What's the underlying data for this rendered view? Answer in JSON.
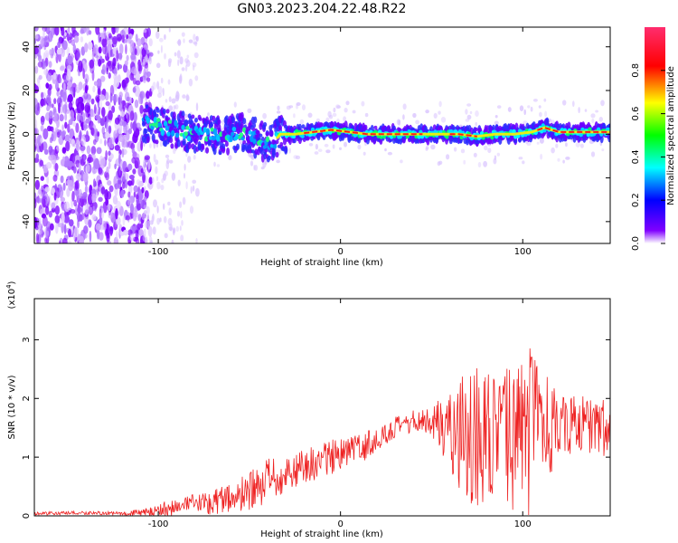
{
  "title": "GN03.2023.204.22.48.R22",
  "chart_data": [
    {
      "type": "heatmap",
      "xlabel": "Height of straight line (km)",
      "ylabel": "Frequency (Hz)",
      "xlim": [
        -168,
        148
      ],
      "ylim": [
        -50,
        49
      ],
      "xticks": [
        "-100",
        "0",
        "100"
      ],
      "xtick_values": [
        -100,
        0,
        100
      ],
      "yticks": [
        "-40",
        "-20",
        "0",
        "20",
        "40"
      ],
      "ytick_values": [
        -40,
        -20,
        0,
        20,
        40
      ],
      "colorbar": {
        "label": "Normalized spectral amplitude",
        "range": [
          0,
          1
        ],
        "ticks": [
          "0.0",
          "0.2",
          "0.4",
          "0.6",
          "0.8"
        ],
        "tick_values": [
          0.0,
          0.2,
          0.4,
          0.6,
          0.8
        ],
        "colors": [
          "#ffffff",
          "#8000ff",
          "#0000ff",
          "#00ffff",
          "#00ff00",
          "#ffff00",
          "#ff0000",
          "#ff2d6e"
        ]
      },
      "ridge": {
        "x": [
          -108,
          -95,
          -85,
          -75,
          -65,
          -55,
          -45,
          -38,
          -33,
          -25,
          -15,
          -5,
          5,
          15,
          25,
          35,
          45,
          55,
          65,
          75,
          85,
          95,
          105,
          112,
          120,
          130,
          140,
          148
        ],
        "y": [
          5,
          3,
          1,
          0,
          -1,
          1,
          -2,
          -5,
          0,
          0,
          1,
          2,
          1,
          0,
          0,
          0,
          0,
          0,
          0,
          -1,
          0,
          0,
          1,
          3,
          1,
          1,
          1,
          1
        ]
      }
    },
    {
      "type": "line",
      "xlabel": "Height of straight line (km)",
      "ylabel": "SNR (10 * v/v)",
      "yscale_label": "(x10",
      "yscale_exp": "4",
      "yscale_close": ")",
      "xlim": [
        -168,
        148
      ],
      "ylim": [
        0,
        3.7
      ],
      "xticks": [
        "-100",
        "0",
        "100"
      ],
      "xtick_values": [
        -100,
        0,
        100
      ],
      "yticks": [
        "0",
        "1",
        "2",
        "3"
      ],
      "ytick_values": [
        0,
        1,
        2,
        3
      ],
      "color": "#ee2222",
      "series": [
        {
          "x": [
            -168,
            -140,
            -120,
            -105,
            -95,
            -85,
            -75,
            -65,
            -55,
            -45,
            -40,
            -35,
            -30,
            -25,
            -20,
            -15,
            -10,
            -5,
            0,
            5,
            10,
            15,
            20,
            25,
            30,
            35,
            40,
            45,
            50,
            55,
            60,
            65,
            70,
            75,
            80,
            85,
            90,
            95,
            100,
            105,
            110,
            115,
            120,
            125,
            130,
            135,
            140,
            148
          ],
          "y": [
            0.04,
            0.05,
            0.04,
            0.06,
            0.12,
            0.18,
            0.22,
            0.28,
            0.35,
            0.45,
            0.55,
            0.62,
            0.7,
            0.78,
            0.85,
            0.9,
            0.95,
            1.0,
            1.05,
            1.1,
            1.15,
            1.22,
            1.3,
            1.4,
            1.48,
            1.55,
            1.6,
            1.63,
            1.62,
            1.55,
            1.5,
            1.45,
            1.4,
            1.35,
            1.3,
            1.3,
            1.3,
            1.35,
            1.4,
            1.45,
            1.45,
            1.5,
            1.5,
            1.55,
            1.55,
            1.55,
            1.55,
            1.5
          ],
          "amplitude": [
            0.03,
            0.03,
            0.03,
            0.08,
            0.15,
            0.15,
            0.2,
            0.25,
            0.3,
            0.4,
            0.45,
            0.35,
            0.3,
            0.3,
            0.3,
            0.3,
            0.3,
            0.3,
            0.25,
            0.25,
            0.25,
            0.25,
            0.2,
            0.2,
            0.2,
            0.2,
            0.2,
            0.2,
            0.25,
            0.5,
            0.8,
            1.0,
            1.2,
            1.3,
            1.2,
            1.1,
            1.2,
            1.3,
            1.4,
            1.5,
            1.2,
            0.8,
            0.6,
            0.5,
            0.5,
            0.5,
            0.5,
            0.5
          ]
        }
      ]
    }
  ]
}
